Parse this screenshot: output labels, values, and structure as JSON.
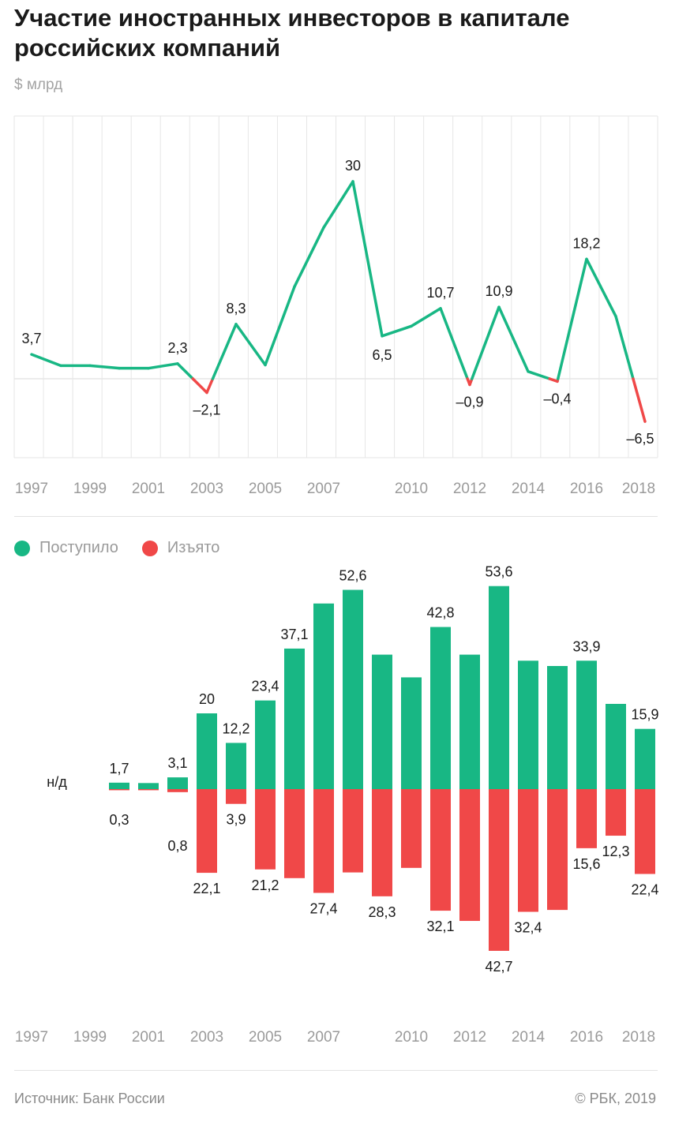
{
  "header": {
    "title": "Участие иностранных инвесторов в капитале российских компаний",
    "unit": "$ млрд"
  },
  "colors": {
    "positive": "#18b784",
    "negative": "#f04848",
    "grid": "#e6e6e6"
  },
  "legend": {
    "inflow": "Поступило",
    "outflow": "Изъято"
  },
  "footer": {
    "source": "Источник: Банк России",
    "copyright": "© РБК, 2019"
  },
  "chart_data": [
    {
      "type": "line",
      "x": [
        1997,
        1998,
        1999,
        2000,
        2001,
        2002,
        2003,
        2004,
        2005,
        2006,
        2007,
        2008,
        2009,
        2010,
        2011,
        2012,
        2013,
        2014,
        2015,
        2016,
        2017,
        2018
      ],
      "y": [
        3.7,
        2,
        2,
        1.6,
        1.6,
        2.3,
        -2.1,
        8.3,
        2.1,
        14,
        23,
        30,
        6.5,
        8,
        10.7,
        -0.9,
        10.9,
        1.1,
        -0.4,
        18.2,
        9.5,
        -6.5
      ],
      "labels": [
        {
          "year": 1997,
          "text": "3,7"
        },
        {
          "year": 2002,
          "text": "2,3"
        },
        {
          "year": 2003,
          "text": "–2,1"
        },
        {
          "year": 2004,
          "text": "8,3"
        },
        {
          "year": 2008,
          "text": "30"
        },
        {
          "year": 2009,
          "text": "6,5"
        },
        {
          "year": 2011,
          "text": "10,7"
        },
        {
          "year": 2012,
          "text": "–0,9"
        },
        {
          "year": 2013,
          "text": "10,9"
        },
        {
          "year": 2015,
          "text": "–0,4"
        },
        {
          "year": 2016,
          "text": "18,2"
        },
        {
          "year": 2018,
          "text": "–6,5"
        }
      ],
      "tick_labels": [
        "1997",
        "1999",
        "2001",
        "2003",
        "2005",
        "2007",
        "2010",
        "2012",
        "2014",
        "2016",
        "2018"
      ],
      "tick_years": [
        1997,
        1999,
        2001,
        2003,
        2005,
        2007,
        2010,
        2012,
        2014,
        2016,
        2018
      ],
      "ylim": [
        -10,
        36
      ],
      "grid": true
    },
    {
      "type": "bar",
      "categories": [
        "1997",
        "1998",
        "1999",
        "2000",
        "2001",
        "2002",
        "2003",
        "2004",
        "2005",
        "2006",
        "2007",
        "2008",
        "2009",
        "2010",
        "2011",
        "2012",
        "2013",
        "2014",
        "2015",
        "2016",
        "2017",
        "2018"
      ],
      "na_label": "н/д",
      "series": [
        {
          "name": "Поступило",
          "values": [
            null,
            null,
            null,
            1.7,
            1.6,
            3.1,
            20,
            12.2,
            23.4,
            37.1,
            49,
            52.6,
            35.5,
            29.5,
            42.8,
            35.5,
            53.6,
            33.9,
            32.5,
            33.9,
            22.5,
            15.9
          ]
        },
        {
          "name": "Изъято",
          "values": [
            null,
            null,
            null,
            0.3,
            0.3,
            0.8,
            22.1,
            3.9,
            21.2,
            23.5,
            27.4,
            22,
            28.3,
            20.8,
            32.1,
            34.8,
            42.7,
            32.4,
            31.9,
            15.6,
            12.3,
            22.4
          ]
        }
      ],
      "inflow_labels": [
        {
          "year": 2000,
          "text": "1,7"
        },
        {
          "year": 2002,
          "text": "3,1"
        },
        {
          "year": 2003,
          "text": "20"
        },
        {
          "year": 2004,
          "text": "12,2"
        },
        {
          "year": 2005,
          "text": "23,4"
        },
        {
          "year": 2006,
          "text": "37,1"
        },
        {
          "year": 2008,
          "text": "52,6"
        },
        {
          "year": 2011,
          "text": "42,8"
        },
        {
          "year": 2013,
          "text": "53,6"
        },
        {
          "year": 2016,
          "text": "33,9"
        },
        {
          "year": 2018,
          "text": "15,9"
        }
      ],
      "outflow_labels": [
        {
          "year": 2000,
          "text": "0,3"
        },
        {
          "year": 2002,
          "text": "0,8"
        },
        {
          "year": 2003,
          "text": "22,1"
        },
        {
          "year": 2004,
          "text": "3,9"
        },
        {
          "year": 2005,
          "text": "21,2"
        },
        {
          "year": 2007,
          "text": "27,4"
        },
        {
          "year": 2009,
          "text": "28,3"
        },
        {
          "year": 2011,
          "text": "32,1"
        },
        {
          "year": 2013,
          "text": "42,7"
        },
        {
          "year": 2014,
          "text": "32,4"
        },
        {
          "year": 2016,
          "text": "15,6"
        },
        {
          "year": 2017,
          "text": "12,3"
        },
        {
          "year": 2018,
          "text": "22,4"
        }
      ],
      "tick_labels": [
        "1997",
        "1999",
        "2001",
        "2003",
        "2005",
        "2007",
        "2010",
        "2012",
        "2014",
        "2016",
        "2018"
      ],
      "tick_years": [
        1997,
        1999,
        2001,
        2003,
        2005,
        2007,
        2010,
        2012,
        2014,
        2016,
        2018
      ]
    }
  ]
}
